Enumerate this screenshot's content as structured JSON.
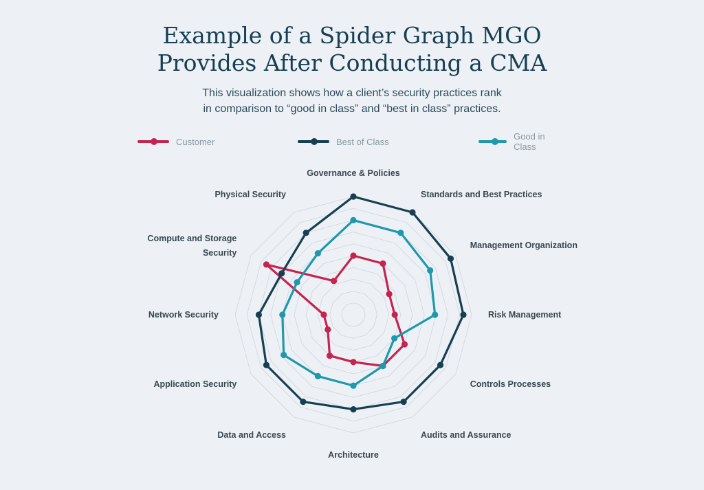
{
  "header": {
    "title_line1": "Example of a Spider Graph MGO",
    "title_line2": "Provides After Conducting a CMA",
    "subtitle_line1": "This visualization shows how a client’s security practices rank",
    "subtitle_line2": "in comparison to “good in class” and “best in class” practices."
  },
  "colors": {
    "customer": "#c4244f",
    "best": "#163f52",
    "good": "#1e98aa",
    "grid": "#d3dae0",
    "background": "#edf1f5"
  },
  "chart_data": {
    "type": "radar",
    "title": "Example of a Spider Graph MGO Provides After Conducting a CMA",
    "categories": [
      "Governance & Policies",
      "Standards and Best Practices",
      "Management Organization",
      "Risk Management",
      "Controls Processes",
      "Audits and Assurance",
      "Architecture",
      "Data and Access",
      "Application Security",
      "Network Security",
      "Compute and Storage Security",
      "Physical Security"
    ],
    "grid_rings": 10,
    "max": 10,
    "legend_position": "top",
    "series": [
      {
        "name": "Customer",
        "color_key": "customer",
        "values": [
          5.0,
          5.0,
          3.5,
          3.5,
          5.0,
          5.0,
          4.0,
          4.0,
          2.5,
          2.5,
          8.5,
          3.3
        ]
      },
      {
        "name": "Best of Class",
        "color_key": "best",
        "values": [
          10.0,
          10.0,
          9.5,
          9.3,
          8.5,
          8.5,
          8.0,
          8.5,
          8.5,
          8.0,
          7.0,
          8.0
        ]
      },
      {
        "name": "Good in Class",
        "color_key": "good",
        "values": [
          8.0,
          8.0,
          7.5,
          6.9,
          4.0,
          5.0,
          6.0,
          6.0,
          6.8,
          6.0,
          5.5,
          6.0
        ]
      }
    ]
  }
}
